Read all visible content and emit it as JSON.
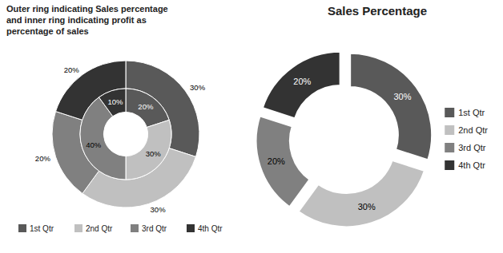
{
  "chart_data": [
    {
      "type": "donut",
      "title": "Outer ring indicating  Sales percentage\nand inner ring indicating  profit as\npercentage  of sales",
      "categories": [
        "1st Qtr",
        "2nd Qtr",
        "3rd Qtr",
        "4th Qtr"
      ],
      "series": [
        {
          "values": [
            30,
            30,
            20,
            20
          ],
          "value_labels": [
            "30%",
            "30%",
            "20%",
            "20%"
          ]
        },
        {
          "values": [
            20,
            30,
            40,
            10
          ],
          "value_labels": [
            "20%",
            "30%",
            "40%",
            "10%"
          ]
        }
      ],
      "colors": [
        "#595959",
        "#C0C0C0",
        "#808080",
        "#333333"
      ],
      "data_labels": true,
      "legend": "bottom"
    },
    {
      "type": "donut",
      "title": "Sales Percentage",
      "categories": [
        "1st Qtr",
        "2nd Qtr",
        "3rd Qtr",
        "4th Qtr"
      ],
      "values": [
        30,
        30,
        20,
        20
      ],
      "value_labels": [
        "30%",
        "30%",
        "20%",
        "20%"
      ],
      "colors": [
        "#595959",
        "#C0C0C0",
        "#808080",
        "#333333"
      ],
      "data_labels": true,
      "legend": "right"
    }
  ]
}
